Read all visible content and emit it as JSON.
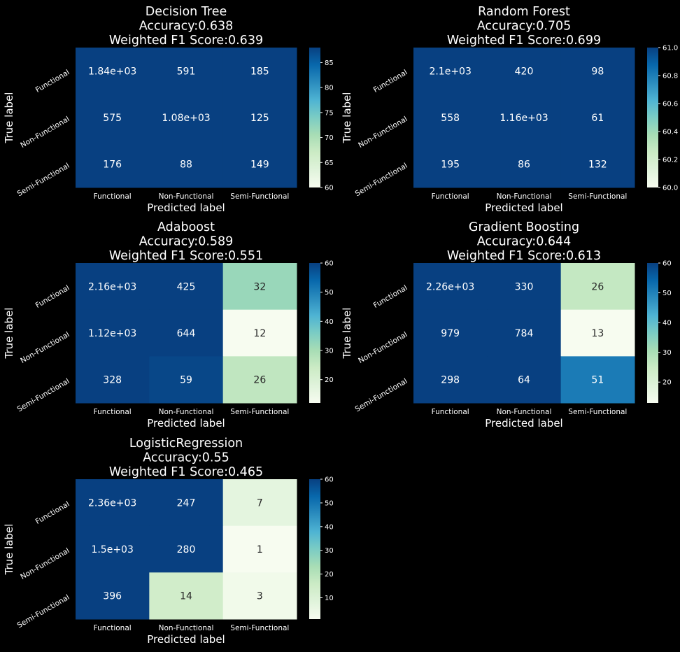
{
  "chart_data": [
    {
      "type": "heatmap",
      "title_lines": [
        "Decision Tree",
        "Accuracy:0.638",
        "Weighted F1 Score:0.639"
      ],
      "xlabel": "Predicted label",
      "ylabel": "True label",
      "categories": [
        "Functional",
        "Non-Functional",
        "Semi-Functional"
      ],
      "cell_labels": [
        [
          "1.84e+03",
          "591",
          "185"
        ],
        [
          "575",
          "1.08e+03",
          "125"
        ],
        [
          "176",
          "88",
          "149"
        ]
      ],
      "values": [
        [
          1840,
          591,
          185
        ],
        [
          575,
          1080,
          125
        ],
        [
          176,
          88,
          149
        ]
      ],
      "color_range": [
        60,
        88
      ],
      "colorbar_ticks": [
        "60",
        "65",
        "70",
        "75",
        "80",
        "85"
      ],
      "colorbar_tick_values": [
        60,
        65,
        70,
        75,
        80,
        85
      ]
    },
    {
      "type": "heatmap",
      "title_lines": [
        "Random Forest",
        "Accuracy:0.705",
        "Weighted F1 Score:0.699"
      ],
      "xlabel": "Predicted label",
      "ylabel": "True label",
      "categories": [
        "Functional",
        "Non-Functional",
        "Semi-Functional"
      ],
      "cell_labels": [
        [
          "2.1e+03",
          "420",
          "98"
        ],
        [
          "558",
          "1.16e+03",
          "61"
        ],
        [
          "195",
          "86",
          "132"
        ]
      ],
      "values": [
        [
          2100,
          420,
          98
        ],
        [
          558,
          1160,
          61
        ],
        [
          195,
          86,
          132
        ]
      ],
      "color_range": [
        60,
        61
      ],
      "colorbar_ticks": [
        "60.0",
        "60.2",
        "60.4",
        "60.6",
        "60.8",
        "61.0"
      ],
      "colorbar_tick_values": [
        60.0,
        60.2,
        60.4,
        60.6,
        60.8,
        61.0
      ]
    },
    {
      "type": "heatmap",
      "title_lines": [
        "Adaboost",
        "Accuracy:0.589",
        "Weighted F1 Score:0.551"
      ],
      "xlabel": "Predicted label",
      "ylabel": "True label",
      "categories": [
        "Functional",
        "Non-Functional",
        "Semi-Functional"
      ],
      "cell_labels": [
        [
          "2.16e+03",
          "425",
          "32"
        ],
        [
          "1.12e+03",
          "644",
          "12"
        ],
        [
          "328",
          "59",
          "26"
        ]
      ],
      "values": [
        [
          2160,
          425,
          32
        ],
        [
          1120,
          644,
          12
        ],
        [
          328,
          59,
          26
        ]
      ],
      "color_range": [
        12,
        60
      ],
      "colorbar_ticks": [
        "20",
        "30",
        "40",
        "50",
        "60"
      ],
      "colorbar_tick_values": [
        20,
        30,
        40,
        50,
        60
      ]
    },
    {
      "type": "heatmap",
      "title_lines": [
        "Gradient Boosting",
        "Accuracy:0.644",
        "Weighted F1 Score:0.613"
      ],
      "xlabel": "Predicted label",
      "ylabel": "True label",
      "categories": [
        "Functional",
        "Non-Functional",
        "Semi-Functional"
      ],
      "cell_labels": [
        [
          "2.26e+03",
          "330",
          "26"
        ],
        [
          "979",
          "784",
          "13"
        ],
        [
          "298",
          "64",
          "51"
        ]
      ],
      "values": [
        [
          2260,
          330,
          26
        ],
        [
          979,
          784,
          13
        ],
        [
          298,
          64,
          51
        ]
      ],
      "color_range": [
        13,
        60
      ],
      "colorbar_ticks": [
        "20",
        "30",
        "40",
        "50",
        "60"
      ],
      "colorbar_tick_values": [
        20,
        30,
        40,
        50,
        60
      ]
    },
    {
      "type": "heatmap",
      "title_lines": [
        "LogisticRegression",
        "Accuracy:0.55",
        "Weighted F1 Score:0.465"
      ],
      "xlabel": "Predicted label",
      "ylabel": "True label",
      "categories": [
        "Functional",
        "Non-Functional",
        "Semi-Functional"
      ],
      "cell_labels": [
        [
          "2.36e+03",
          "247",
          "7"
        ],
        [
          "1.5e+03",
          "280",
          "1"
        ],
        [
          "396",
          "14",
          "3"
        ]
      ],
      "values": [
        [
          2360,
          247,
          7
        ],
        [
          1500,
          280,
          1
        ],
        [
          396,
          14,
          3
        ]
      ],
      "color_range": [
        1,
        60
      ],
      "colorbar_ticks": [
        "10",
        "20",
        "30",
        "40",
        "50",
        "60"
      ],
      "colorbar_tick_values": [
        10,
        20,
        30,
        40,
        50,
        60
      ]
    }
  ],
  "colormap": "GnBu",
  "colormap_stops": [
    "#f7fcf0",
    "#e0f3db",
    "#ccebc5",
    "#a8ddb5",
    "#7bccc4",
    "#4eb3d3",
    "#2b8cbe",
    "#0868ac",
    "#084081"
  ]
}
